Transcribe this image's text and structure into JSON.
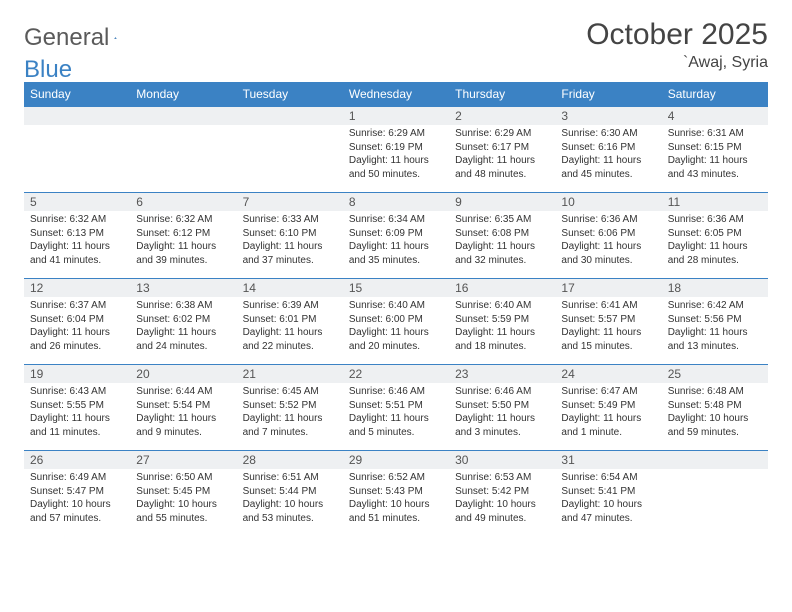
{
  "brand": {
    "word1": "General",
    "word2": "Blue"
  },
  "title": "October 2025",
  "location": "`Awaj, Syria",
  "day_headers": [
    "Sunday",
    "Monday",
    "Tuesday",
    "Wednesday",
    "Thursday",
    "Friday",
    "Saturday"
  ],
  "colors": {
    "accent": "#3b82c4",
    "header_text": "#ffffff",
    "daynum_bg": "#eef0f2",
    "border": "#3b82c4",
    "text": "#333333",
    "title_text": "#444444"
  },
  "weeks": [
    [
      {
        "num": "",
        "sunrise": "",
        "sunset": "",
        "daylight": ""
      },
      {
        "num": "",
        "sunrise": "",
        "sunset": "",
        "daylight": ""
      },
      {
        "num": "",
        "sunrise": "",
        "sunset": "",
        "daylight": ""
      },
      {
        "num": "1",
        "sunrise": "Sunrise: 6:29 AM",
        "sunset": "Sunset: 6:19 PM",
        "daylight": "Daylight: 11 hours and 50 minutes."
      },
      {
        "num": "2",
        "sunrise": "Sunrise: 6:29 AM",
        "sunset": "Sunset: 6:17 PM",
        "daylight": "Daylight: 11 hours and 48 minutes."
      },
      {
        "num": "3",
        "sunrise": "Sunrise: 6:30 AM",
        "sunset": "Sunset: 6:16 PM",
        "daylight": "Daylight: 11 hours and 45 minutes."
      },
      {
        "num": "4",
        "sunrise": "Sunrise: 6:31 AM",
        "sunset": "Sunset: 6:15 PM",
        "daylight": "Daylight: 11 hours and 43 minutes."
      }
    ],
    [
      {
        "num": "5",
        "sunrise": "Sunrise: 6:32 AM",
        "sunset": "Sunset: 6:13 PM",
        "daylight": "Daylight: 11 hours and 41 minutes."
      },
      {
        "num": "6",
        "sunrise": "Sunrise: 6:32 AM",
        "sunset": "Sunset: 6:12 PM",
        "daylight": "Daylight: 11 hours and 39 minutes."
      },
      {
        "num": "7",
        "sunrise": "Sunrise: 6:33 AM",
        "sunset": "Sunset: 6:10 PM",
        "daylight": "Daylight: 11 hours and 37 minutes."
      },
      {
        "num": "8",
        "sunrise": "Sunrise: 6:34 AM",
        "sunset": "Sunset: 6:09 PM",
        "daylight": "Daylight: 11 hours and 35 minutes."
      },
      {
        "num": "9",
        "sunrise": "Sunrise: 6:35 AM",
        "sunset": "Sunset: 6:08 PM",
        "daylight": "Daylight: 11 hours and 32 minutes."
      },
      {
        "num": "10",
        "sunrise": "Sunrise: 6:36 AM",
        "sunset": "Sunset: 6:06 PM",
        "daylight": "Daylight: 11 hours and 30 minutes."
      },
      {
        "num": "11",
        "sunrise": "Sunrise: 6:36 AM",
        "sunset": "Sunset: 6:05 PM",
        "daylight": "Daylight: 11 hours and 28 minutes."
      }
    ],
    [
      {
        "num": "12",
        "sunrise": "Sunrise: 6:37 AM",
        "sunset": "Sunset: 6:04 PM",
        "daylight": "Daylight: 11 hours and 26 minutes."
      },
      {
        "num": "13",
        "sunrise": "Sunrise: 6:38 AM",
        "sunset": "Sunset: 6:02 PM",
        "daylight": "Daylight: 11 hours and 24 minutes."
      },
      {
        "num": "14",
        "sunrise": "Sunrise: 6:39 AM",
        "sunset": "Sunset: 6:01 PM",
        "daylight": "Daylight: 11 hours and 22 minutes."
      },
      {
        "num": "15",
        "sunrise": "Sunrise: 6:40 AM",
        "sunset": "Sunset: 6:00 PM",
        "daylight": "Daylight: 11 hours and 20 minutes."
      },
      {
        "num": "16",
        "sunrise": "Sunrise: 6:40 AM",
        "sunset": "Sunset: 5:59 PM",
        "daylight": "Daylight: 11 hours and 18 minutes."
      },
      {
        "num": "17",
        "sunrise": "Sunrise: 6:41 AM",
        "sunset": "Sunset: 5:57 PM",
        "daylight": "Daylight: 11 hours and 15 minutes."
      },
      {
        "num": "18",
        "sunrise": "Sunrise: 6:42 AM",
        "sunset": "Sunset: 5:56 PM",
        "daylight": "Daylight: 11 hours and 13 minutes."
      }
    ],
    [
      {
        "num": "19",
        "sunrise": "Sunrise: 6:43 AM",
        "sunset": "Sunset: 5:55 PM",
        "daylight": "Daylight: 11 hours and 11 minutes."
      },
      {
        "num": "20",
        "sunrise": "Sunrise: 6:44 AM",
        "sunset": "Sunset: 5:54 PM",
        "daylight": "Daylight: 11 hours and 9 minutes."
      },
      {
        "num": "21",
        "sunrise": "Sunrise: 6:45 AM",
        "sunset": "Sunset: 5:52 PM",
        "daylight": "Daylight: 11 hours and 7 minutes."
      },
      {
        "num": "22",
        "sunrise": "Sunrise: 6:46 AM",
        "sunset": "Sunset: 5:51 PM",
        "daylight": "Daylight: 11 hours and 5 minutes."
      },
      {
        "num": "23",
        "sunrise": "Sunrise: 6:46 AM",
        "sunset": "Sunset: 5:50 PM",
        "daylight": "Daylight: 11 hours and 3 minutes."
      },
      {
        "num": "24",
        "sunrise": "Sunrise: 6:47 AM",
        "sunset": "Sunset: 5:49 PM",
        "daylight": "Daylight: 11 hours and 1 minute."
      },
      {
        "num": "25",
        "sunrise": "Sunrise: 6:48 AM",
        "sunset": "Sunset: 5:48 PM",
        "daylight": "Daylight: 10 hours and 59 minutes."
      }
    ],
    [
      {
        "num": "26",
        "sunrise": "Sunrise: 6:49 AM",
        "sunset": "Sunset: 5:47 PM",
        "daylight": "Daylight: 10 hours and 57 minutes."
      },
      {
        "num": "27",
        "sunrise": "Sunrise: 6:50 AM",
        "sunset": "Sunset: 5:45 PM",
        "daylight": "Daylight: 10 hours and 55 minutes."
      },
      {
        "num": "28",
        "sunrise": "Sunrise: 6:51 AM",
        "sunset": "Sunset: 5:44 PM",
        "daylight": "Daylight: 10 hours and 53 minutes."
      },
      {
        "num": "29",
        "sunrise": "Sunrise: 6:52 AM",
        "sunset": "Sunset: 5:43 PM",
        "daylight": "Daylight: 10 hours and 51 minutes."
      },
      {
        "num": "30",
        "sunrise": "Sunrise: 6:53 AM",
        "sunset": "Sunset: 5:42 PM",
        "daylight": "Daylight: 10 hours and 49 minutes."
      },
      {
        "num": "31",
        "sunrise": "Sunrise: 6:54 AM",
        "sunset": "Sunset: 5:41 PM",
        "daylight": "Daylight: 10 hours and 47 minutes."
      },
      {
        "num": "",
        "sunrise": "",
        "sunset": "",
        "daylight": ""
      }
    ]
  ]
}
